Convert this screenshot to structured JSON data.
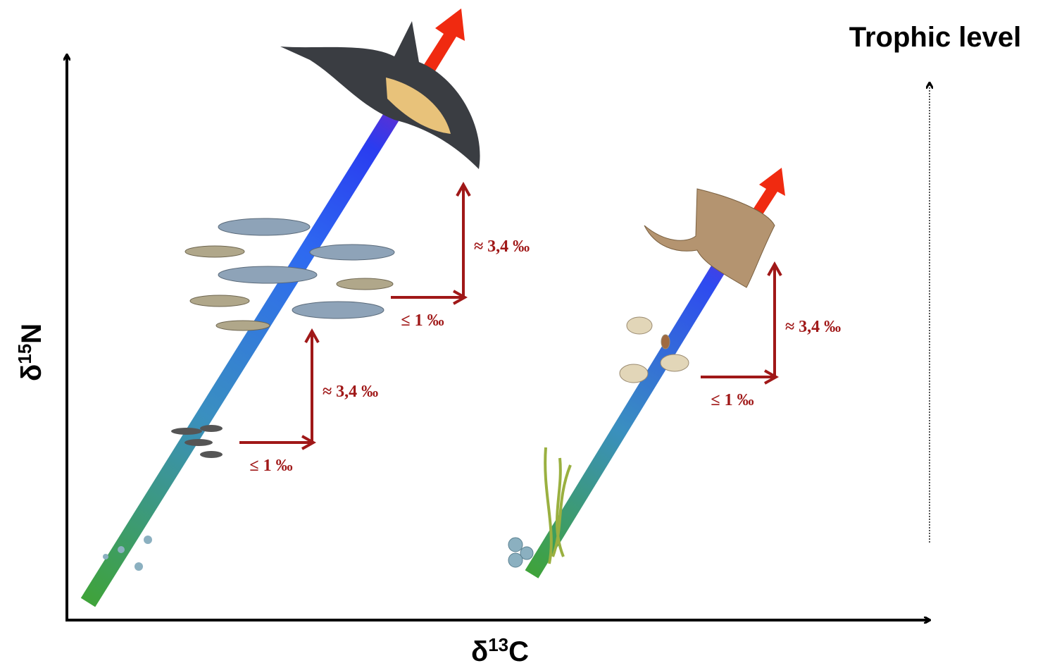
{
  "title": "Trophic level",
  "x_axis": {
    "prefix": "δ",
    "superscript": "13",
    "suffix": "C"
  },
  "y_axis": {
    "prefix": "δ",
    "superscript": "15",
    "suffix": "N"
  },
  "steps": [
    {
      "carbon_shift": "≤ 1 ‰",
      "nitrogen_shift": "≈ 3,4 ‰"
    },
    {
      "carbon_shift": "≤ 1 ‰",
      "nitrogen_shift": "≈ 3,4 ‰"
    },
    {
      "carbon_shift": "≤ 1 ‰",
      "nitrogen_shift": "≈ 3,4 ‰"
    }
  ]
}
